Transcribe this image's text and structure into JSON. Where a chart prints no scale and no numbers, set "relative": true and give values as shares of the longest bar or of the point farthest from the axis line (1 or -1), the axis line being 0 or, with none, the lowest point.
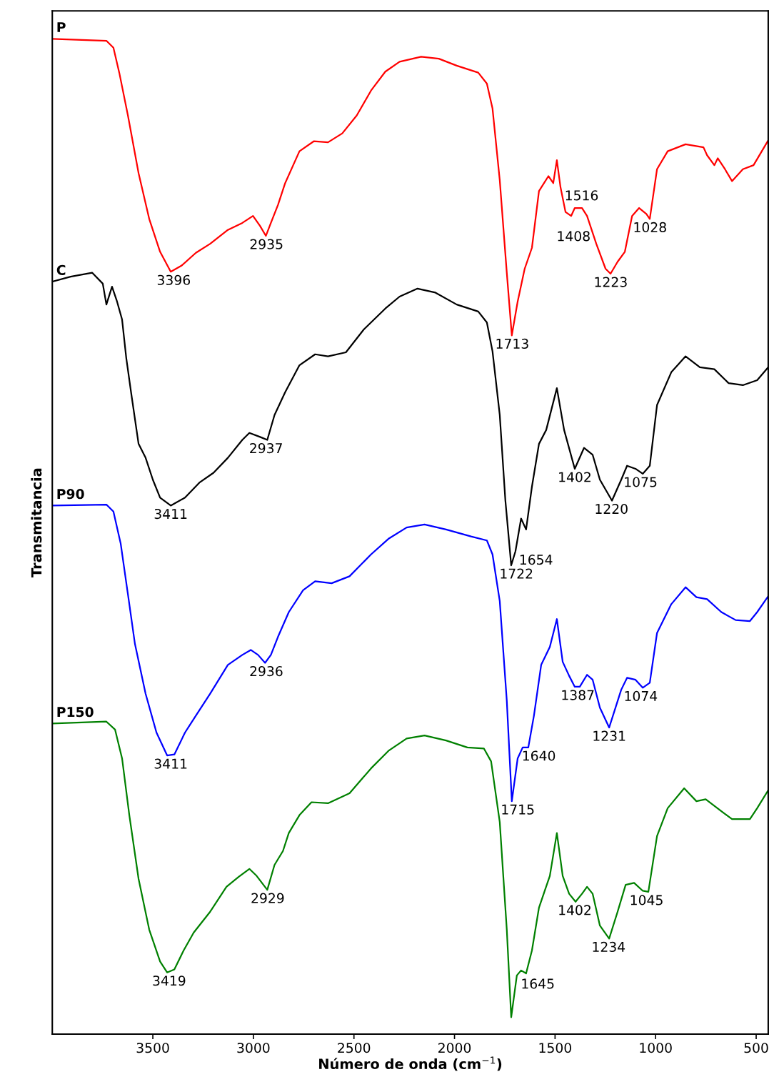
{
  "chart_data": {
    "type": "line",
    "relative": true,
    "xlabel": "Número de onda (cm$^{−1}$)",
    "ylabel": "Transmitancia",
    "xlim": [
      4000,
      440
    ],
    "xticks": [
      3500,
      3000,
      2500,
      2000,
      1500,
      1000,
      500
    ],
    "legend": false,
    "grid": false,
    "tick_labels": "x",
    "series": [
      {
        "name": "P",
        "color": "#ff0000",
        "x": [
          4000,
          3731,
          3696,
          3667,
          3624,
          3571,
          3518,
          3464,
          3411,
          3358,
          3286,
          3215,
          3127,
          3055,
          3002,
          2967,
          2938,
          2913,
          2878,
          2842,
          2771,
          2700,
          2629,
          2558,
          2486,
          2415,
          2344,
          2273,
          2166,
          2078,
          1989,
          1882,
          1839,
          1811,
          1775,
          1740,
          1715,
          1686,
          1651,
          1615,
          1580,
          1533,
          1509,
          1491,
          1473,
          1448,
          1420,
          1402,
          1366,
          1341,
          1295,
          1249,
          1224,
          1189,
          1153,
          1117,
          1082,
          1046,
          1029,
          993,
          940,
          851,
          762,
          744,
          708,
          691,
          655,
          620,
          566,
          513,
          440
        ],
        "values": [
          1.0,
          0.998,
          0.991,
          0.966,
          0.923,
          0.865,
          0.819,
          0.786,
          0.766,
          0.772,
          0.785,
          0.794,
          0.808,
          0.815,
          0.822,
          0.812,
          0.802,
          0.815,
          0.833,
          0.855,
          0.887,
          0.897,
          0.896,
          0.905,
          0.923,
          0.948,
          0.967,
          0.977,
          0.982,
          0.98,
          0.973,
          0.966,
          0.955,
          0.93,
          0.858,
          0.765,
          0.702,
          0.736,
          0.769,
          0.79,
          0.847,
          0.862,
          0.855,
          0.878,
          0.851,
          0.826,
          0.822,
          0.83,
          0.83,
          0.822,
          0.794,
          0.769,
          0.764,
          0.776,
          0.786,
          0.822,
          0.83,
          0.824,
          0.819,
          0.869,
          0.887,
          0.894,
          0.891,
          0.883,
          0.873,
          0.88,
          0.869,
          0.857,
          0.869,
          0.873,
          0.898
        ]
      },
      {
        "name": "C",
        "color": "#000000",
        "x": [
          4000,
          3909,
          3802,
          3749,
          3731,
          3703,
          3678,
          3653,
          3632,
          3607,
          3571,
          3536,
          3500,
          3464,
          3411,
          3340,
          3269,
          3198,
          3127,
          3055,
          3020,
          2967,
          2931,
          2895,
          2842,
          2771,
          2693,
          2629,
          2540,
          2451,
          2344,
          2273,
          2184,
          2095,
          1989,
          1882,
          1839,
          1811,
          1775,
          1747,
          1718,
          1697,
          1669,
          1644,
          1615,
          1580,
          1544,
          1491,
          1455,
          1402,
          1356,
          1313,
          1277,
          1217,
          1171,
          1142,
          1100,
          1064,
          1029,
          993,
          922,
          851,
          780,
          708,
          637,
          566,
          495,
          440
        ],
        "values": [
          0.756,
          0.761,
          0.765,
          0.754,
          0.733,
          0.751,
          0.736,
          0.718,
          0.679,
          0.643,
          0.593,
          0.579,
          0.557,
          0.539,
          0.531,
          0.539,
          0.554,
          0.564,
          0.579,
          0.597,
          0.604,
          0.6,
          0.597,
          0.622,
          0.645,
          0.672,
          0.683,
          0.681,
          0.685,
          0.708,
          0.729,
          0.741,
          0.749,
          0.745,
          0.733,
          0.726,
          0.715,
          0.686,
          0.622,
          0.536,
          0.471,
          0.485,
          0.518,
          0.507,
          0.55,
          0.593,
          0.607,
          0.649,
          0.607,
          0.568,
          0.589,
          0.582,
          0.557,
          0.536,
          0.557,
          0.571,
          0.568,
          0.563,
          0.571,
          0.632,
          0.665,
          0.681,
          0.67,
          0.668,
          0.654,
          0.652,
          0.657,
          0.67
        ]
      },
      {
        "name": "P90",
        "color": "#0000ff",
        "x": [
          4000,
          3731,
          3696,
          3660,
          3624,
          3589,
          3536,
          3482,
          3429,
          3393,
          3340,
          3286,
          3215,
          3127,
          3055,
          3013,
          2977,
          2942,
          2913,
          2878,
          2824,
          2753,
          2693,
          2611,
          2522,
          2415,
          2326,
          2238,
          2149,
          2042,
          1918,
          1839,
          1811,
          1775,
          1740,
          1715,
          1686,
          1661,
          1633,
          1605,
          1569,
          1526,
          1491,
          1462,
          1430,
          1402,
          1377,
          1341,
          1313,
          1277,
          1231,
          1171,
          1142,
          1100,
          1064,
          1029,
          993,
          922,
          851,
          797,
          744,
          673,
          602,
          531,
          495,
          440
        ],
        "values": [
          0.531,
          0.532,
          0.525,
          0.493,
          0.442,
          0.392,
          0.342,
          0.303,
          0.28,
          0.281,
          0.303,
          0.32,
          0.342,
          0.371,
          0.381,
          0.386,
          0.381,
          0.373,
          0.381,
          0.399,
          0.424,
          0.446,
          0.455,
          0.453,
          0.46,
          0.482,
          0.498,
          0.509,
          0.512,
          0.507,
          0.5,
          0.496,
          0.482,
          0.435,
          0.335,
          0.234,
          0.277,
          0.288,
          0.288,
          0.32,
          0.371,
          0.389,
          0.417,
          0.374,
          0.36,
          0.349,
          0.349,
          0.361,
          0.356,
          0.328,
          0.308,
          0.346,
          0.358,
          0.356,
          0.348,
          0.353,
          0.403,
          0.432,
          0.449,
          0.439,
          0.437,
          0.424,
          0.416,
          0.415,
          0.424,
          0.44
        ]
      },
      {
        "name": "P150",
        "color": "#008000",
        "x": [
          4000,
          3731,
          3688,
          3653,
          3617,
          3571,
          3518,
          3464,
          3429,
          3393,
          3347,
          3297,
          3215,
          3134,
          3073,
          3020,
          2984,
          2931,
          2895,
          2853,
          2824,
          2771,
          2711,
          2629,
          2522,
          2415,
          2326,
          2238,
          2149,
          2042,
          1936,
          1854,
          1818,
          1775,
          1740,
          1718,
          1690,
          1669,
          1644,
          1615,
          1580,
          1526,
          1491,
          1462,
          1430,
          1398,
          1366,
          1341,
          1313,
          1277,
          1231,
          1189,
          1149,
          1107,
          1064,
          1036,
          993,
          940,
          858,
          797,
          751,
          673,
          620,
          531,
          495,
          440
        ],
        "values": [
          0.312,
          0.314,
          0.306,
          0.277,
          0.22,
          0.156,
          0.105,
          0.073,
          0.062,
          0.065,
          0.084,
          0.102,
          0.123,
          0.148,
          0.158,
          0.166,
          0.159,
          0.145,
          0.17,
          0.184,
          0.202,
          0.22,
          0.233,
          0.232,
          0.242,
          0.267,
          0.285,
          0.297,
          0.3,
          0.295,
          0.288,
          0.287,
          0.274,
          0.213,
          0.105,
          0.017,
          0.059,
          0.064,
          0.061,
          0.084,
          0.127,
          0.159,
          0.202,
          0.159,
          0.141,
          0.133,
          0.141,
          0.148,
          0.141,
          0.109,
          0.096,
          0.123,
          0.15,
          0.152,
          0.144,
          0.143,
          0.199,
          0.227,
          0.247,
          0.234,
          0.236,
          0.224,
          0.216,
          0.216,
          0.227,
          0.245
        ]
      }
    ],
    "annotations": [
      {
        "text": "3396",
        "x": 3396,
        "y": 0.766
      },
      {
        "text": "2935",
        "x": 2935,
        "y": 0.802
      },
      {
        "text": "1713",
        "x": 1713,
        "y": 0.702
      },
      {
        "text": "1516",
        "x": 1516,
        "y": 0.855
      },
      {
        "text": "1408",
        "x": 1408,
        "y": 0.83
      },
      {
        "text": "1223",
        "x": 1223,
        "y": 0.764
      },
      {
        "text": "1028",
        "x": 1028,
        "y": 0.819
      },
      {
        "text": "3411",
        "x": 3411,
        "y": 0.531
      },
      {
        "text": "2937",
        "x": 2937,
        "y": 0.597
      },
      {
        "text": "1722",
        "x": 1722,
        "y": 0.471
      },
      {
        "text": "1654",
        "x": 1654,
        "y": 0.507
      },
      {
        "text": "1402",
        "x": 1402,
        "y": 0.568
      },
      {
        "text": "1220",
        "x": 1220,
        "y": 0.536
      },
      {
        "text": "1075",
        "x": 1075,
        "y": 0.563
      },
      {
        "text": "3411",
        "x": 3411,
        "y": 0.28
      },
      {
        "text": "2936",
        "x": 2936,
        "y": 0.373
      },
      {
        "text": "1715",
        "x": 1715,
        "y": 0.234
      },
      {
        "text": "1640",
        "x": 1640,
        "y": 0.288
      },
      {
        "text": "1387",
        "x": 1387,
        "y": 0.349
      },
      {
        "text": "1231",
        "x": 1231,
        "y": 0.308
      },
      {
        "text": "1074",
        "x": 1074,
        "y": 0.348
      },
      {
        "text": "3419",
        "x": 3419,
        "y": 0.062
      },
      {
        "text": "2929",
        "x": 2929,
        "y": 0.145
      },
      {
        "text": "1645",
        "x": 1645,
        "y": 0.061
      },
      {
        "text": "1402",
        "x": 1402,
        "y": 0.133
      },
      {
        "text": "1234",
        "x": 1234,
        "y": 0.096
      },
      {
        "text": "1045",
        "x": 1045,
        "y": 0.144
      }
    ]
  }
}
